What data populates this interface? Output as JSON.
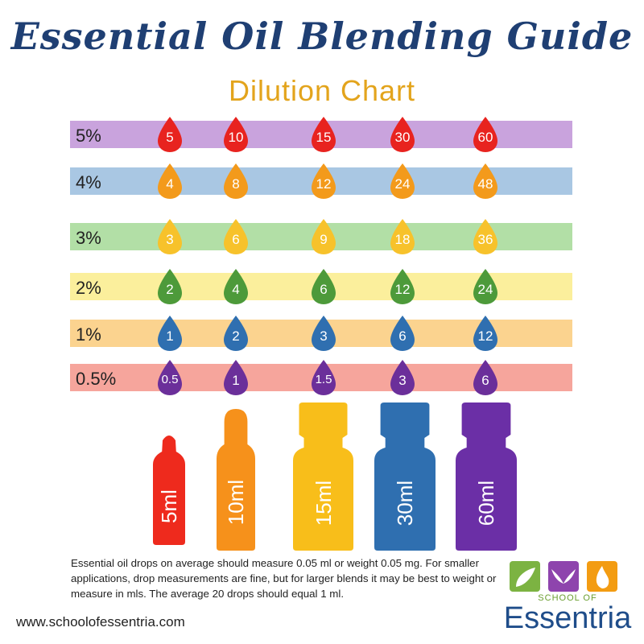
{
  "header": {
    "title": "Essential Oil Blending Guide",
    "subtitle": "Dilution Chart"
  },
  "rows": [
    {
      "label": "5%",
      "band_color": "#c9a3dd",
      "drop_color": "#e8231f",
      "values": [
        "5",
        "10",
        "15",
        "30",
        "60"
      ]
    },
    {
      "label": "4%",
      "band_color": "#a9c7e3",
      "drop_color": "#f39a1b",
      "values": [
        "4",
        "8",
        "12",
        "24",
        "48"
      ]
    },
    {
      "label": "3%",
      "band_color": "#b2dfa6",
      "drop_color": "#f7c22b",
      "values": [
        "3",
        "6",
        "9",
        "18",
        "36"
      ]
    },
    {
      "label": "2%",
      "band_color": "#fbef9c",
      "drop_color": "#4d9a3a",
      "values": [
        "2",
        "4",
        "6",
        "12",
        "24"
      ]
    },
    {
      "label": "1%",
      "band_color": "#fbd38f",
      "drop_color": "#2f6fb0",
      "values": [
        "1",
        "2",
        "3",
        "6",
        "12"
      ]
    },
    {
      "label": "0.5%",
      "band_color": "#f6a59c",
      "drop_color": "#6b2f9a",
      "values": [
        "0.5",
        "1",
        "1.5",
        "3",
        "6"
      ]
    }
  ],
  "bottles": [
    {
      "label": "5ml",
      "color": "#ee2a1d",
      "type": "roller-small"
    },
    {
      "label": "10ml",
      "color": "#f6911b",
      "type": "roller"
    },
    {
      "label": "15ml",
      "color": "#f8be1a",
      "type": "dropper"
    },
    {
      "label": "30ml",
      "color": "#2f6fb0",
      "type": "dropper"
    },
    {
      "label": "60ml",
      "color": "#6b2fa6",
      "type": "dropper"
    }
  ],
  "note": "Essential oil drops on average should measure 0.05 ml or weight 0.05 mg.  For smaller applications, drop measurements are fine, but for larger blends it may be best to weight or measure in mls.  The average 20 drops should equal 1 ml.",
  "website": "www.schoolofessentria.com",
  "logo": {
    "school_text": "SCHOOL OF",
    "name": "Essentria",
    "colors": [
      "#7cb342",
      "#8e44ad",
      "#f39c12"
    ]
  }
}
